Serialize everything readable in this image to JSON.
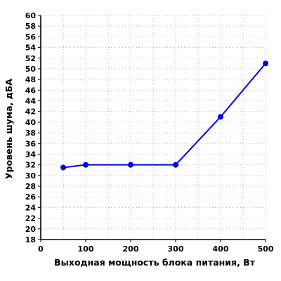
{
  "chart_data": {
    "type": "line",
    "title": "",
    "xlabel": "Выходная мощность блока питания, Вт",
    "ylabel": "Уровень шума, дБА",
    "xlim": [
      0,
      500
    ],
    "ylim": [
      18,
      60
    ],
    "xticks": [
      0,
      100,
      200,
      300,
      400,
      500
    ],
    "yticks": [
      18,
      20,
      22,
      24,
      26,
      28,
      30,
      32,
      34,
      36,
      38,
      40,
      42,
      44,
      46,
      48,
      50,
      52,
      54,
      56,
      58,
      60
    ],
    "x_minor_grid": [
      50,
      150,
      250,
      350,
      450
    ],
    "grid": true,
    "line_color": "#0000ee",
    "series": [
      {
        "x": [
          50,
          100,
          200,
          300,
          400,
          500
        ],
        "y": [
          31.5,
          32.0,
          32.0,
          32.0,
          41.0,
          51.0
        ]
      }
    ]
  }
}
